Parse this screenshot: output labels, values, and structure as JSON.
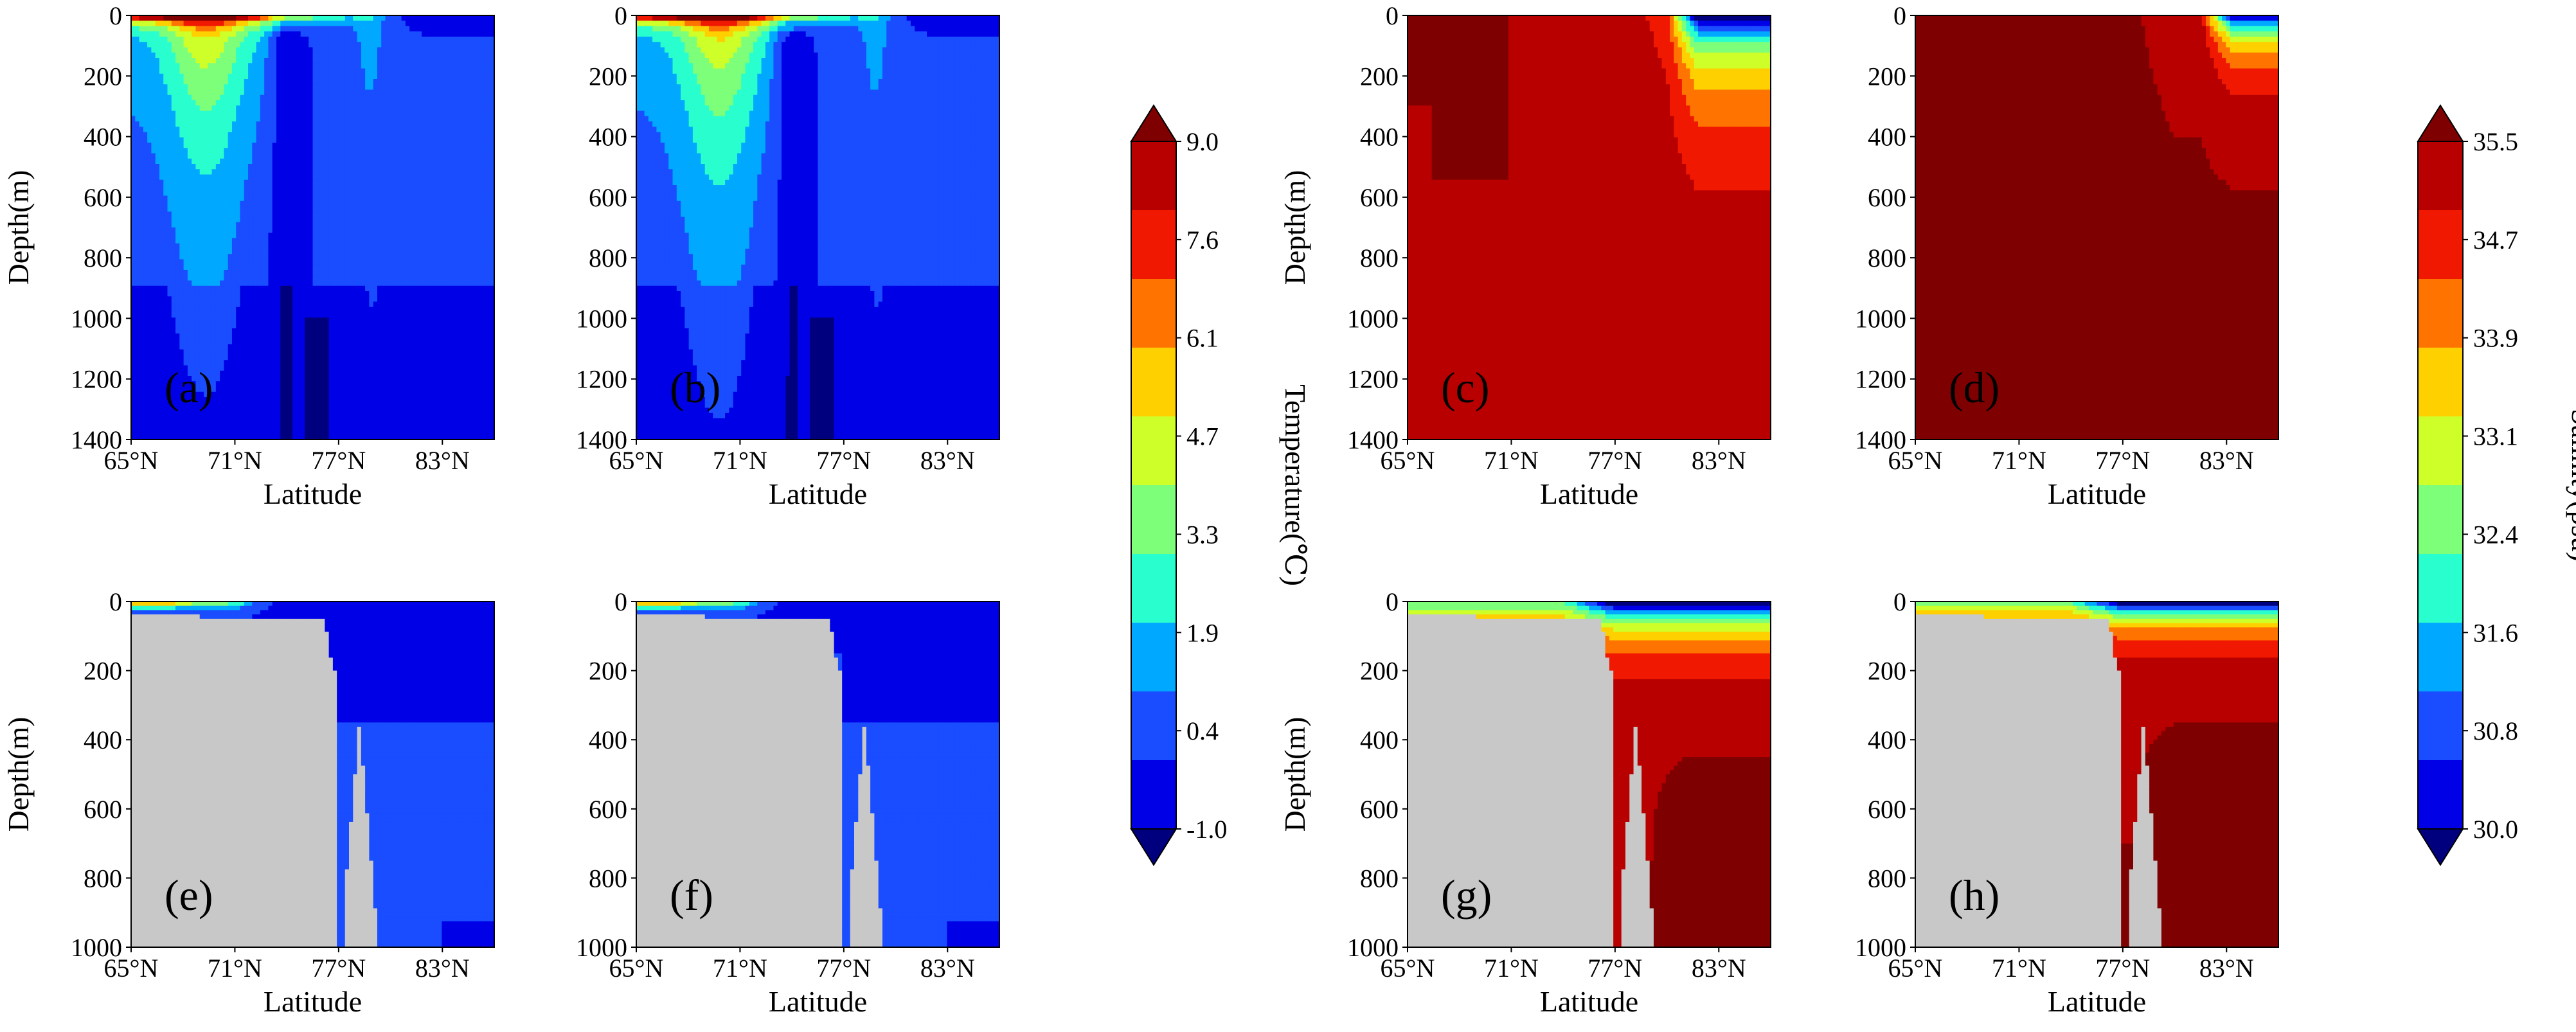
{
  "figure": {
    "colors": {
      "land": "#c8c8c8",
      "temperature_colormap": [
        "#00007f",
        "#0000e6",
        "#1a4dff",
        "#00a8ff",
        "#29ffce",
        "#7dff7a",
        "#ceff29",
        "#ffd000",
        "#ff7400",
        "#f01800",
        "#b80000",
        "#7f0000"
      ],
      "salinity_colormap": [
        "#00007f",
        "#0000e6",
        "#1a4dff",
        "#00a8ff",
        "#29ffce",
        "#7dff7a",
        "#ceff29",
        "#ffd000",
        "#ff7400",
        "#f01800",
        "#b80000",
        "#7f0000"
      ]
    },
    "colorbars": [
      {
        "id": "temperature",
        "label": "Temperature(℃)",
        "ticks": [
          "9.0",
          "7.6",
          "6.1",
          "4.7",
          "3.3",
          "1.9",
          "0.4",
          "-1.0"
        ],
        "min": -1.0,
        "max": 9.0
      },
      {
        "id": "salinity",
        "label": "Salinity(psu)",
        "ticks": [
          "35.5",
          "34.7",
          "33.9",
          "33.1",
          "32.4",
          "31.6",
          "30.8",
          "30.0"
        ],
        "min": 30.0,
        "max": 35.5
      }
    ]
  },
  "chart_data": [
    {
      "panel": "(a)",
      "type": "heatmap",
      "variable": "Temperature",
      "xlabel": "Latitude",
      "ylabel": "Depth(m)",
      "xticks": [
        "65°N",
        "71°N",
        "77°N",
        "83°N"
      ],
      "yticks": [
        "0",
        "200",
        "400",
        "600",
        "800",
        "1000",
        "1200",
        "1400"
      ],
      "xlim": [
        65,
        86
      ],
      "ylim": [
        1400,
        0
      ],
      "field": {
        "background": 0.9,
        "surface_max": 8.8,
        "features": [
          "warm Atlantic water core (~3.5-4 °C) near 68-70°N down to ~600 m",
          "cold (~0.3 °C) deep water below 900 m",
          "cold surface water north of 80°N"
        ]
      }
    },
    {
      "panel": "(b)",
      "type": "heatmap",
      "variable": "Temperature",
      "xlabel": "Latitude",
      "ylabel": "Depth(m)",
      "xticks": [
        "65°N",
        "71°N",
        "77°N",
        "83°N"
      ],
      "yticks": [
        "0",
        "200",
        "400",
        "600",
        "800",
        "1000",
        "1200",
        "1400"
      ],
      "xlim": [
        65,
        86
      ],
      "ylim": [
        1400,
        0
      ],
      "field": {
        "background": 0.9,
        "surface_max": 8.8,
        "features": [
          "warm Atlantic water core near 68-70°N",
          "cold deep water below 1000 m"
        ]
      }
    },
    {
      "panel": "(c)",
      "type": "heatmap",
      "variable": "Salinity",
      "xlabel": "Latitude",
      "ylabel": "Depth(m)",
      "xticks": [
        "65°N",
        "71°N",
        "77°N",
        "83°N"
      ],
      "yticks": [
        "0",
        "200",
        "400",
        "600",
        "800",
        "1000",
        "1200",
        "1400"
      ],
      "xlim": [
        65,
        86
      ],
      "ylim": [
        1400,
        0
      ],
      "field": {
        "background": 34.9,
        "features": [
          "high salinity (~35.3) plume near 66-71°N",
          "fresh (~30-32) surface water north of 80°N"
        ]
      }
    },
    {
      "panel": "(d)",
      "type": "heatmap",
      "variable": "Salinity",
      "xlabel": "Latitude",
      "ylabel": "Depth(m)",
      "xticks": [
        "65°N",
        "71°N",
        "77°N",
        "83°N"
      ],
      "yticks": [
        "0",
        "200",
        "400",
        "600",
        "800",
        "1000",
        "1200",
        "1400"
      ],
      "xlim": [
        65,
        86
      ],
      "ylim": [
        1400,
        0
      ],
      "field": {
        "background": 35.1,
        "features": [
          "high salinity (~35.4) core near 68-71°N",
          "fresher surface water north of 81°N"
        ]
      }
    },
    {
      "panel": "(e)",
      "type": "heatmap",
      "variable": "Temperature",
      "xlabel": "Latitude",
      "ylabel": "Depth(m)",
      "xticks": [
        "65°N",
        "71°N",
        "77°N",
        "83°N"
      ],
      "yticks": [
        "0",
        "200",
        "400",
        "600",
        "800",
        "1000"
      ],
      "xlim": [
        65,
        86
      ],
      "ylim": [
        1000,
        0
      ],
      "field": {
        "background": 1.4,
        "features": [
          "shelf (grey land) south of 77°N",
          "warm surface water near 65-70°N",
          "cold (~0.4 °C) upper layer north of 77°N"
        ]
      }
    },
    {
      "panel": "(f)",
      "type": "heatmap",
      "variable": "Temperature",
      "xlabel": "Latitude",
      "ylabel": "Depth(m)",
      "xticks": [
        "65°N",
        "71°N",
        "77°N",
        "83°N"
      ],
      "yticks": [
        "0",
        "200",
        "400",
        "600",
        "800",
        "1000"
      ],
      "xlim": [
        65,
        86
      ],
      "ylim": [
        1000,
        0
      ],
      "field": {
        "background": 1.4,
        "features": [
          "shelf (grey land) south of 77°N",
          "warm surface water near 65-70°N"
        ]
      }
    },
    {
      "panel": "(g)",
      "type": "heatmap",
      "variable": "Salinity",
      "xlabel": "Latitude",
      "ylabel": "Depth(m)",
      "xticks": [
        "65°N",
        "71°N",
        "77°N",
        "83°N"
      ],
      "yticks": [
        "0",
        "200",
        "400",
        "600",
        "800",
        "1000"
      ],
      "xlim": [
        65,
        86
      ],
      "ylim": [
        1000,
        0
      ],
      "field": {
        "background": 35.1,
        "features": [
          "shelf (grey land) south of 77°N",
          "stratified fresh surface layer (30-34) north of 75°N",
          "saline deep water (~35.4) north of 80°N"
        ]
      }
    },
    {
      "panel": "(h)",
      "type": "heatmap",
      "variable": "Salinity",
      "xlabel": "Latitude",
      "ylabel": "Depth(m)",
      "xticks": [
        "65°N",
        "71°N",
        "77°N",
        "83°N"
      ],
      "yticks": [
        "0",
        "200",
        "400",
        "600",
        "800",
        "1000"
      ],
      "xlim": [
        65,
        86
      ],
      "ylim": [
        1000,
        0
      ],
      "field": {
        "background": 35.2,
        "features": [
          "shelf (grey land) south of 77°N",
          "stratified surface layer north of 75°N",
          "saline deep water (~35.4) north of 78°N"
        ]
      }
    }
  ]
}
